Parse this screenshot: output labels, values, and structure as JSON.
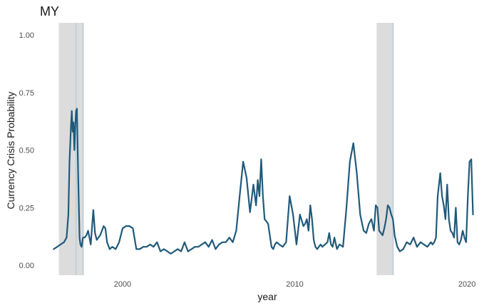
{
  "chart_data": {
    "type": "line",
    "title": "MY",
    "xlabel": "year",
    "ylabel": "Currency Crisis Probability",
    "xlim": [
      1995.2,
      2020.7
    ],
    "ylim": [
      0,
      1
    ],
    "x_ticks": [
      2000,
      2010,
      2020
    ],
    "x_tick_labels": [
      "2000",
      "2010",
      "2020"
    ],
    "y_ticks": [
      0,
      0.25,
      0.5,
      0.75,
      1.0
    ],
    "y_tick_labels": [
      "0.00",
      "0.25",
      "0.50",
      "0.75",
      "1.00"
    ],
    "grid": false,
    "legend": "none",
    "colors": {
      "line": "#1f5a7a",
      "crisis_band": "#dcdcdc",
      "crisis_marker": "#a9c8dc"
    },
    "crisis_periods": [
      [
        1996.3,
        1997.75
      ],
      [
        2014.75,
        2015.75
      ]
    ],
    "crisis_markers": [
      1997.3,
      1997.7,
      2015.7
    ],
    "series": [
      {
        "x": [
          1996.0,
          1996.2,
          1996.4,
          1996.6,
          1996.75,
          1996.85,
          1996.92,
          1997.0,
          1997.05,
          1997.1,
          1997.15,
          1997.2,
          1997.25,
          1997.3,
          1997.35,
          1997.42,
          1997.5,
          1997.55,
          1997.62,
          1997.7,
          1997.8,
          1997.9,
          1998.0,
          1998.15,
          1998.3,
          1998.4,
          1998.5,
          1998.6,
          1998.7,
          1998.8,
          1998.9,
          1999.0,
          1999.1,
          1999.25,
          1999.4,
          1999.6,
          1999.8,
          2000.0,
          2000.2,
          2000.4,
          2000.6,
          2000.8,
          2001.0,
          2001.2,
          2001.4,
          2001.6,
          2001.8,
          2002.0,
          2002.2,
          2002.4,
          2002.6,
          2002.8,
          2003.0,
          2003.2,
          2003.4,
          2003.6,
          2003.8,
          2004.0,
          2004.2,
          2004.4,
          2004.6,
          2004.8,
          2005.0,
          2005.2,
          2005.4,
          2005.6,
          2005.8,
          2006.0,
          2006.2,
          2006.4,
          2006.6,
          2006.8,
          2007.0,
          2007.2,
          2007.4,
          2007.6,
          2007.75,
          2007.85,
          2007.95,
          2008.05,
          2008.15,
          2008.25,
          2008.35,
          2008.45,
          2008.55,
          2008.65,
          2008.75,
          2008.85,
          2008.95,
          2009.1,
          2009.3,
          2009.5,
          2009.7,
          2009.9,
          2010.1,
          2010.3,
          2010.5,
          2010.6,
          2010.7,
          2010.8,
          2010.9,
          2011.0,
          2011.1,
          2011.2,
          2011.3,
          2011.4,
          2011.5,
          2011.6,
          2011.75,
          2011.9,
          2012.0,
          2012.1,
          2012.2,
          2012.3,
          2012.45,
          2012.6,
          2012.8,
          2013.0,
          2013.2,
          2013.4,
          2013.6,
          2013.8,
          2014.0,
          2014.15,
          2014.3,
          2014.45,
          2014.6,
          2014.7,
          2014.8,
          2014.9,
          2015.0,
          2015.1,
          2015.2,
          2015.3,
          2015.4,
          2015.5,
          2015.6,
          2015.7,
          2015.8,
          2015.95,
          2016.1,
          2016.3,
          2016.5,
          2016.7,
          2016.9,
          2017.1,
          2017.3,
          2017.5,
          2017.7,
          2017.9,
          2018.0,
          2018.1,
          2018.2,
          2018.3,
          2018.45,
          2018.55,
          2018.65,
          2018.75,
          2018.85,
          2018.95,
          2019.05,
          2019.15,
          2019.25,
          2019.35,
          2019.45,
          2019.55,
          2019.65,
          2019.75,
          2019.85,
          2019.95,
          2020.05,
          2020.15,
          2020.25,
          2020.35
        ],
        "y": [
          0.07,
          0.08,
          0.09,
          0.1,
          0.12,
          0.22,
          0.45,
          0.6,
          0.67,
          0.58,
          0.62,
          0.5,
          0.6,
          0.67,
          0.68,
          0.4,
          0.12,
          0.09,
          0.08,
          0.12,
          0.12,
          0.13,
          0.15,
          0.09,
          0.24,
          0.14,
          0.11,
          0.12,
          0.13,
          0.15,
          0.17,
          0.16,
          0.1,
          0.07,
          0.08,
          0.07,
          0.1,
          0.16,
          0.17,
          0.17,
          0.16,
          0.07,
          0.07,
          0.08,
          0.08,
          0.09,
          0.08,
          0.1,
          0.06,
          0.07,
          0.06,
          0.05,
          0.06,
          0.07,
          0.06,
          0.1,
          0.06,
          0.07,
          0.08,
          0.08,
          0.09,
          0.1,
          0.08,
          0.11,
          0.07,
          0.09,
          0.1,
          0.1,
          0.12,
          0.1,
          0.15,
          0.3,
          0.45,
          0.38,
          0.23,
          0.35,
          0.26,
          0.37,
          0.3,
          0.46,
          0.3,
          0.2,
          0.19,
          0.18,
          0.13,
          0.08,
          0.07,
          0.09,
          0.1,
          0.09,
          0.08,
          0.1,
          0.3,
          0.22,
          0.09,
          0.22,
          0.17,
          0.18,
          0.2,
          0.15,
          0.26,
          0.2,
          0.11,
          0.08,
          0.07,
          0.08,
          0.09,
          0.08,
          0.09,
          0.1,
          0.14,
          0.09,
          0.08,
          0.12,
          0.07,
          0.09,
          0.08,
          0.25,
          0.45,
          0.53,
          0.4,
          0.22,
          0.15,
          0.14,
          0.18,
          0.2,
          0.15,
          0.26,
          0.25,
          0.15,
          0.14,
          0.13,
          0.16,
          0.2,
          0.26,
          0.25,
          0.22,
          0.2,
          0.13,
          0.08,
          0.06,
          0.07,
          0.1,
          0.09,
          0.12,
          0.08,
          0.1,
          0.09,
          0.08,
          0.1,
          0.09,
          0.1,
          0.12,
          0.3,
          0.4,
          0.3,
          0.26,
          0.2,
          0.35,
          0.2,
          0.15,
          0.14,
          0.12,
          0.25,
          0.1,
          0.09,
          0.11,
          0.15,
          0.12,
          0.1,
          0.3,
          0.45,
          0.46,
          0.22
        ]
      }
    ]
  }
}
